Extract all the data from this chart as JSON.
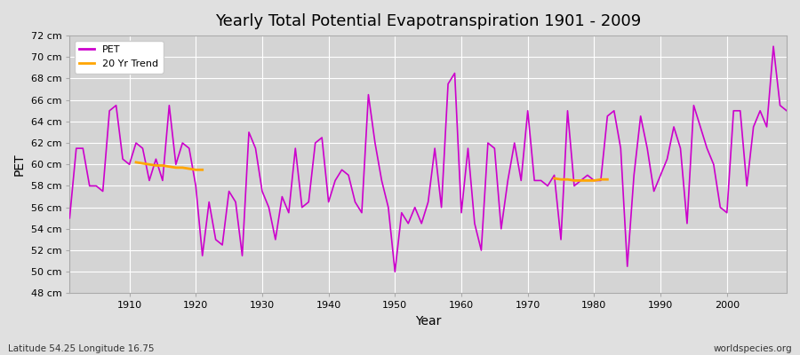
{
  "title": "Yearly Total Potential Evapotranspiration 1901 - 2009",
  "xlabel": "Year",
  "ylabel": "PET",
  "subtitle_left": "Latitude 54.25 Longitude 16.75",
  "subtitle_right": "worldspecies.org",
  "pet_color": "#cc00cc",
  "trend_color": "#ffa500",
  "bg_color": "#e0e0e0",
  "plot_bg_color": "#d4d4d4",
  "ylim": [
    48,
    72
  ],
  "xlim": [
    1901,
    2009
  ],
  "ytick_step": 2,
  "years": [
    1901,
    1902,
    1903,
    1904,
    1905,
    1906,
    1907,
    1908,
    1909,
    1910,
    1911,
    1912,
    1913,
    1914,
    1915,
    1916,
    1917,
    1918,
    1919,
    1920,
    1921,
    1922,
    1923,
    1924,
    1925,
    1926,
    1927,
    1928,
    1929,
    1930,
    1931,
    1932,
    1933,
    1934,
    1935,
    1936,
    1937,
    1938,
    1939,
    1940,
    1941,
    1942,
    1943,
    1944,
    1945,
    1946,
    1947,
    1948,
    1949,
    1950,
    1951,
    1952,
    1953,
    1954,
    1955,
    1956,
    1957,
    1958,
    1959,
    1960,
    1961,
    1962,
    1963,
    1964,
    1965,
    1966,
    1967,
    1968,
    1969,
    1970,
    1971,
    1972,
    1973,
    1974,
    1975,
    1976,
    1977,
    1978,
    1979,
    1980,
    1981,
    1982,
    1983,
    1984,
    1985,
    1986,
    1987,
    1988,
    1989,
    1990,
    1991,
    1992,
    1993,
    1994,
    1995,
    1996,
    1997,
    1998,
    1999,
    2000,
    2001,
    2002,
    2003,
    2004,
    2005,
    2006,
    2007,
    2008,
    2009
  ],
  "pet": [
    55.0,
    61.5,
    61.5,
    58.0,
    58.0,
    57.5,
    65.0,
    65.5,
    60.5,
    60.0,
    62.0,
    61.5,
    58.5,
    60.5,
    58.5,
    65.5,
    60.0,
    62.0,
    61.5,
    58.0,
    51.5,
    56.5,
    53.0,
    52.5,
    57.5,
    56.5,
    51.5,
    63.0,
    61.5,
    57.5,
    56.0,
    53.0,
    57.0,
    55.5,
    61.5,
    56.0,
    56.5,
    62.0,
    62.5,
    56.5,
    58.5,
    59.5,
    59.0,
    56.5,
    55.5,
    66.5,
    62.0,
    58.5,
    56.0,
    50.0,
    55.5,
    54.5,
    56.0,
    54.5,
    56.5,
    61.5,
    56.0,
    67.5,
    68.5,
    55.5,
    61.5,
    54.5,
    52.0,
    62.0,
    61.5,
    54.0,
    58.5,
    62.0,
    58.5,
    65.0,
    58.5,
    58.5,
    58.0,
    59.0,
    53.0,
    65.0,
    58.0,
    58.5,
    59.0,
    58.5,
    58.5,
    64.5,
    65.0,
    61.5,
    50.5,
    59.0,
    64.5,
    61.5,
    57.5,
    59.0,
    60.5,
    63.5,
    61.5,
    54.5,
    65.5,
    63.5,
    61.5,
    60.0,
    56.0,
    55.5,
    65.0,
    65.0,
    58.0,
    63.5,
    65.0,
    63.5,
    71.0,
    65.5,
    65.0
  ],
  "trend_segments": [
    {
      "years": [
        1911,
        1912,
        1913,
        1914,
        1915,
        1916,
        1917,
        1918,
        1919,
        1920,
        1921
      ],
      "vals": [
        60.2,
        60.1,
        60.0,
        59.9,
        59.9,
        59.8,
        59.7,
        59.7,
        59.6,
        59.5,
        59.5
      ]
    },
    {
      "years": [
        1974,
        1975,
        1976,
        1977,
        1978,
        1979,
        1980,
        1981,
        1982
      ],
      "vals": [
        58.7,
        58.6,
        58.6,
        58.5,
        58.5,
        58.5,
        58.5,
        58.6,
        58.6
      ]
    }
  ]
}
